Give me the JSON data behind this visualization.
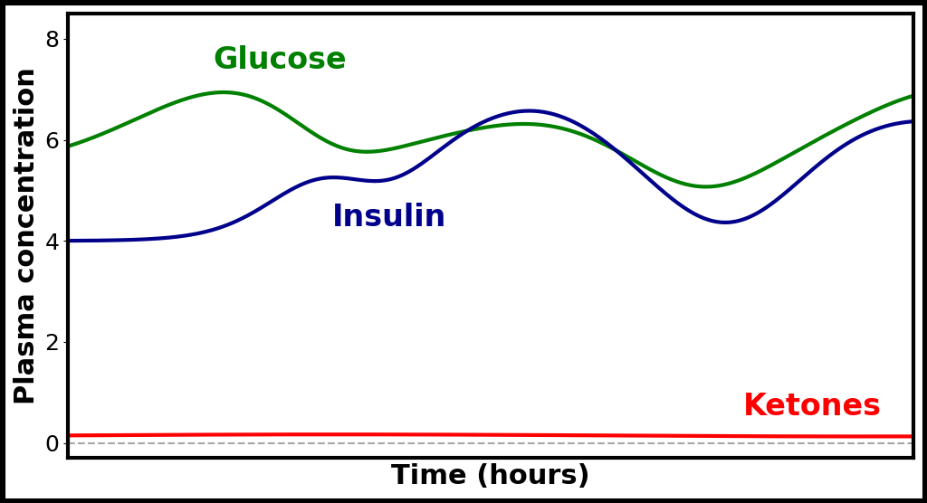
{
  "title": "",
  "xlabel": "Time (hours)",
  "ylabel": "Plasma concentration",
  "xlabel_fontsize": 22,
  "ylabel_fontsize": 22,
  "ylim": [
    -0.3,
    8.5
  ],
  "xlim": [
    0,
    10
  ],
  "yticks": [
    0,
    2,
    4,
    6,
    8
  ],
  "background_color": "#ffffff",
  "border_color": "#000000",
  "glucose_color": "#008000",
  "insulin_color": "#00008B",
  "ketones_color": "#ff0000",
  "glucose_label": "Glucose",
  "insulin_label": "Insulin",
  "ketones_label": "Ketones",
  "label_fontsize": 24,
  "line_width": 3.0,
  "tick_fontsize": 18
}
